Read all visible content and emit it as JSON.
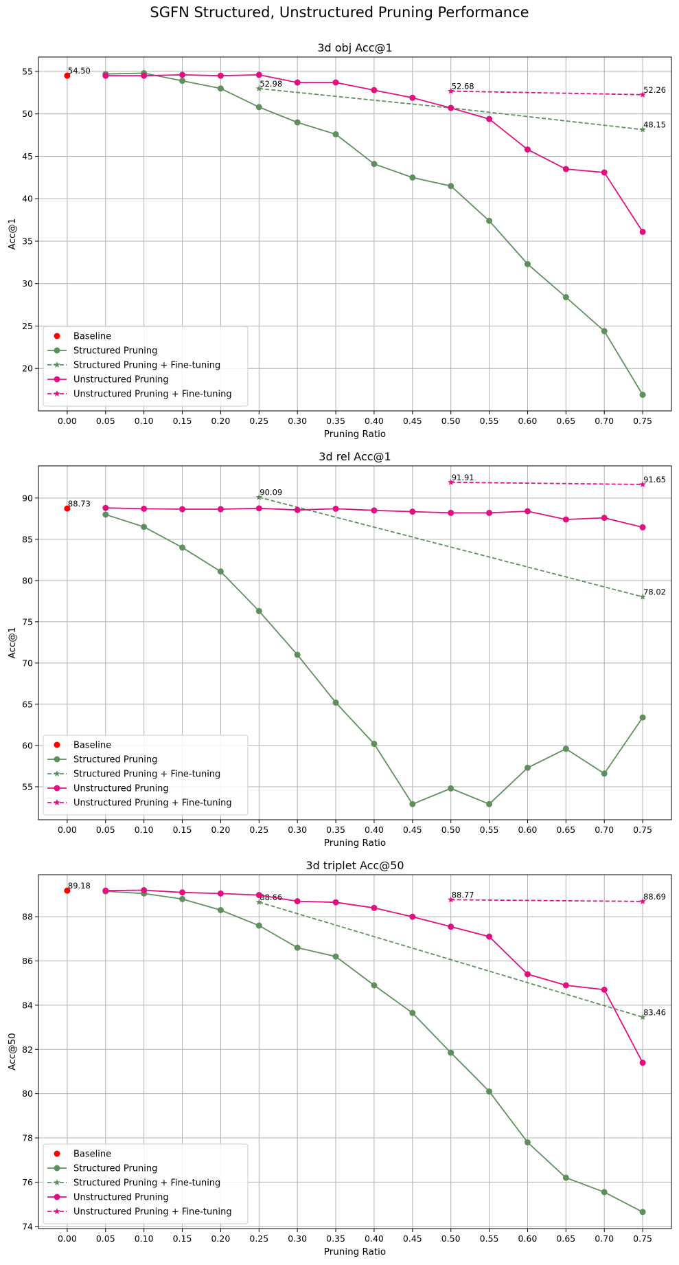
{
  "title": "SGFN Structured, Unstructured Pruning Performance",
  "colors": {
    "baseline": "#ff0000",
    "structured": "#5f8f5f",
    "unstructured": "#e0107f",
    "grid": "#b0b0b0"
  },
  "legend_location": "lower-left",
  "legend": [
    "Baseline",
    "Structured Pruning",
    "Structured Pruning + Fine-tuning",
    "Unstructured Pruning",
    "Unstructured Pruning + Fine-tuning"
  ],
  "chart_data": [
    {
      "type": "line",
      "title": "3d obj Acc@1",
      "xlabel": "Pruning Ratio",
      "ylabel": "Acc@1",
      "xlim": [
        -0.0375,
        0.7875
      ],
      "ylim": [
        15.0,
        56.7
      ],
      "xticks": [
        "0.00",
        "0.05",
        "0.10",
        "0.15",
        "0.20",
        "0.25",
        "0.30",
        "0.35",
        "0.40",
        "0.45",
        "0.50",
        "0.55",
        "0.60",
        "0.65",
        "0.70",
        "0.75"
      ],
      "yticks": [
        20,
        25,
        30,
        35,
        40,
        45,
        50,
        55
      ],
      "grid": true,
      "baseline": {
        "x": 0.0,
        "y": 54.5,
        "label": "54.50"
      },
      "series": [
        {
          "name": "Structured Pruning",
          "style": "solid-circle",
          "x": [
            0.05,
            0.1,
            0.15,
            0.2,
            0.25,
            0.3,
            0.35,
            0.4,
            0.45,
            0.5,
            0.55,
            0.6,
            0.65,
            0.7,
            0.75
          ],
          "y": [
            54.7,
            54.8,
            53.9,
            53.0,
            50.8,
            49.0,
            47.6,
            44.1,
            42.5,
            41.5,
            37.4,
            32.3,
            28.4,
            24.4,
            16.9
          ]
        },
        {
          "name": "Structured Pruning + Fine-tuning",
          "style": "dashed-star",
          "x": [
            0.25,
            0.5,
            0.75
          ],
          "y": [
            52.98,
            50.7,
            48.15
          ],
          "labels": [
            "52.98",
            "",
            "48.15"
          ]
        },
        {
          "name": "Unstructured Pruning",
          "style": "solid-circle",
          "x": [
            0.05,
            0.1,
            0.15,
            0.2,
            0.25,
            0.3,
            0.35,
            0.4,
            0.45,
            0.5,
            0.55,
            0.6,
            0.65,
            0.7,
            0.75
          ],
          "y": [
            54.5,
            54.5,
            54.6,
            54.5,
            54.6,
            53.7,
            53.7,
            52.8,
            51.9,
            50.7,
            49.4,
            45.8,
            43.5,
            43.1,
            36.1
          ]
        },
        {
          "name": "Unstructured Pruning + Fine-tuning",
          "style": "dashed-star",
          "x": [
            0.5,
            0.75
          ],
          "y": [
            52.68,
            52.26
          ],
          "labels": [
            "52.68",
            "52.26"
          ]
        }
      ]
    },
    {
      "type": "line",
      "title": "3d rel Acc@1",
      "xlabel": "Pruning Ratio",
      "ylabel": "Acc@1",
      "xlim": [
        -0.0375,
        0.7875
      ],
      "ylim": [
        51.0,
        93.9
      ],
      "xticks": [
        "0.00",
        "0.05",
        "0.10",
        "0.15",
        "0.20",
        "0.25",
        "0.30",
        "0.35",
        "0.40",
        "0.45",
        "0.50",
        "0.55",
        "0.60",
        "0.65",
        "0.70",
        "0.75"
      ],
      "yticks": [
        55,
        60,
        65,
        70,
        75,
        80,
        85,
        90
      ],
      "grid": true,
      "baseline": {
        "x": 0.0,
        "y": 88.73,
        "label": "88.73"
      },
      "series": [
        {
          "name": "Structured Pruning",
          "style": "solid-circle",
          "x": [
            0.05,
            0.1,
            0.15,
            0.2,
            0.25,
            0.3,
            0.35,
            0.4,
            0.45,
            0.5,
            0.55,
            0.6,
            0.65,
            0.7,
            0.75
          ],
          "y": [
            88.0,
            86.5,
            84.0,
            81.1,
            76.3,
            71.0,
            65.2,
            60.2,
            52.9,
            54.8,
            52.9,
            57.3,
            59.6,
            56.6,
            63.4
          ]
        },
        {
          "name": "Structured Pruning + Fine-tuning",
          "style": "dashed-star",
          "x": [
            0.25,
            0.75
          ],
          "y": [
            90.09,
            78.02
          ],
          "labels": [
            "90.09",
            "78.02"
          ]
        },
        {
          "name": "Unstructured Pruning",
          "style": "solid-circle",
          "x": [
            0.05,
            0.1,
            0.15,
            0.2,
            0.25,
            0.3,
            0.35,
            0.4,
            0.45,
            0.5,
            0.55,
            0.6,
            0.65,
            0.7,
            0.75
          ],
          "y": [
            88.8,
            88.7,
            88.65,
            88.65,
            88.75,
            88.55,
            88.7,
            88.5,
            88.35,
            88.2,
            88.2,
            88.4,
            87.4,
            87.6,
            86.45
          ]
        },
        {
          "name": "Unstructured Pruning + Fine-tuning",
          "style": "dashed-star",
          "x": [
            0.5,
            0.75
          ],
          "y": [
            91.91,
            91.65
          ],
          "labels": [
            "91.91",
            "91.65"
          ]
        }
      ]
    },
    {
      "type": "line",
      "title": "3d triplet Acc@50",
      "xlabel": "Pruning Ratio",
      "ylabel": "Acc@50",
      "xlim": [
        -0.0375,
        0.7875
      ],
      "ylim": [
        73.9,
        89.9
      ],
      "xticks": [
        "0.00",
        "0.05",
        "0.10",
        "0.15",
        "0.20",
        "0.25",
        "0.30",
        "0.35",
        "0.40",
        "0.45",
        "0.50",
        "0.55",
        "0.60",
        "0.65",
        "0.70",
        "0.75"
      ],
      "yticks": [
        74,
        76,
        78,
        80,
        82,
        84,
        86,
        88
      ],
      "grid": true,
      "baseline": {
        "x": 0.0,
        "y": 89.18,
        "label": "89.18"
      },
      "series": [
        {
          "name": "Structured Pruning",
          "style": "solid-circle",
          "x": [
            0.05,
            0.1,
            0.15,
            0.2,
            0.25,
            0.3,
            0.35,
            0.4,
            0.45,
            0.5,
            0.55,
            0.6,
            0.65,
            0.7,
            0.75
          ],
          "y": [
            89.15,
            89.05,
            88.8,
            88.3,
            87.6,
            86.6,
            86.2,
            84.9,
            83.65,
            81.85,
            80.1,
            77.8,
            76.2,
            75.55,
            74.65
          ]
        },
        {
          "name": "Structured Pruning + Fine-tuning",
          "style": "dashed-star",
          "x": [
            0.25,
            0.75
          ],
          "y": [
            88.66,
            83.46
          ],
          "labels": [
            "88.66",
            "83.46"
          ]
        },
        {
          "name": "Unstructured Pruning",
          "style": "solid-circle",
          "x": [
            0.05,
            0.1,
            0.15,
            0.2,
            0.25,
            0.3,
            0.35,
            0.4,
            0.45,
            0.5,
            0.55,
            0.6,
            0.65,
            0.7,
            0.75
          ],
          "y": [
            89.18,
            89.2,
            89.1,
            89.05,
            88.98,
            88.7,
            88.65,
            88.4,
            88.0,
            87.55,
            87.1,
            85.4,
            84.9,
            84.7,
            81.4
          ]
        },
        {
          "name": "Unstructured Pruning + Fine-tuning",
          "style": "dashed-star",
          "x": [
            0.5,
            0.75
          ],
          "y": [
            88.77,
            88.69
          ],
          "labels": [
            "88.77",
            "88.69"
          ]
        }
      ]
    }
  ]
}
